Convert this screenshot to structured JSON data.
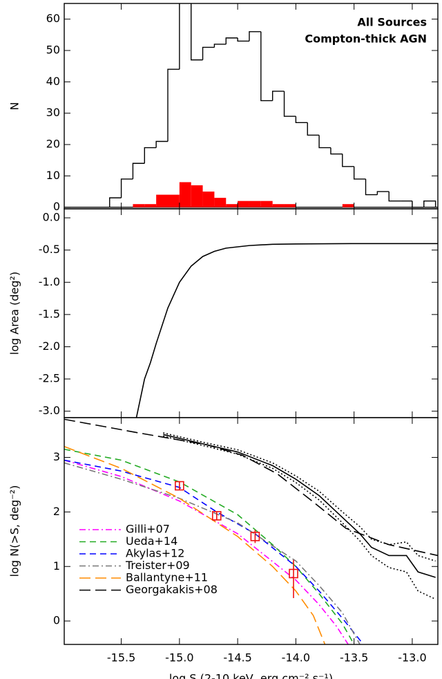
{
  "chart_data": [
    {
      "type": "histogram",
      "ylabel": "N",
      "xlim": [
        -15.99,
        -12.78
      ],
      "xticks": [
        -15.5,
        -15.0,
        -14.5,
        -14.0,
        -13.5,
        -13.0
      ],
      "ylim": [
        -0.5,
        65
      ],
      "yticks": [
        0,
        10,
        20,
        30,
        40,
        50,
        60
      ],
      "bins": [
        -15.6,
        -15.5,
        -15.4,
        -15.3,
        -15.2,
        -15.1,
        -15.0,
        -14.9,
        -14.8,
        -14.7,
        -14.6,
        -14.5,
        -14.4,
        -14.3,
        -14.2,
        -14.1,
        -14.0,
        -13.9,
        -13.8,
        -13.7,
        -13.6,
        -13.5,
        -13.4,
        -13.3,
        -13.2,
        -13.1,
        -13.0,
        -12.9,
        -12.8
      ],
      "legend": "upper right",
      "series": [
        {
          "name": "All Sources",
          "color": "#000000",
          "histtype": "step",
          "values": [
            3,
            9,
            14,
            19,
            21,
            44,
            70,
            47,
            51,
            52,
            54,
            53,
            56,
            34,
            37,
            29,
            27,
            23,
            19,
            17,
            13,
            9,
            4,
            5,
            2,
            2,
            0,
            2
          ]
        },
        {
          "name": "Compton-thick AGN",
          "color": "#ff0000",
          "histtype": "stepfilled",
          "values": [
            0,
            0,
            1,
            1,
            4,
            4,
            8,
            7,
            5,
            3,
            1,
            2,
            2,
            2,
            1,
            1,
            0,
            0,
            0,
            0,
            1,
            0,
            0,
            0,
            0,
            0,
            0,
            0
          ]
        }
      ]
    },
    {
      "type": "line",
      "ylabel": "log Area (deg²)",
      "xlim": [
        -15.99,
        -12.78
      ],
      "xticks": [
        -15.5,
        -15.0,
        -14.5,
        -14.0,
        -13.5,
        -13.0
      ],
      "ylim": [
        -3.1,
        0.14
      ],
      "yticks": [
        {
          "value": 0,
          "label": "0.0"
        },
        -0.5,
        {
          "value": -1,
          "label": "-1.0"
        },
        -1.5,
        {
          "value": -2,
          "label": "-2.0"
        },
        -2.5,
        {
          "value": -3,
          "label": "-3.0"
        }
      ],
      "color": "#000000",
      "x": [
        -15.37,
        -15.3,
        -15.25,
        -15.2,
        -15.1,
        -15.0,
        -14.9,
        -14.8,
        -14.7,
        -14.6,
        -14.4,
        -14.2,
        -14.0,
        -13.5,
        -12.78
      ],
      "values": [
        -3.1,
        -2.5,
        -2.25,
        -1.95,
        -1.4,
        -1.0,
        -0.75,
        -0.6,
        -0.52,
        -0.47,
        -0.43,
        -0.41,
        -0.405,
        -0.4,
        -0.4
      ]
    },
    {
      "type": "line",
      "xlabel": "log S (2-10 keV, erg cm⁻² s⁻¹)",
      "ylabel": "log N(>S, deg⁻²)",
      "xlim": [
        -15.99,
        -12.78
      ],
      "xticks": [
        -15.5,
        {
          "value": -15,
          "label": "-15.0"
        },
        -14.5,
        {
          "value": -14,
          "label": "-14.0"
        },
        -13.5,
        {
          "value": -13,
          "label": "-13.0"
        }
      ],
      "ylim": [
        -0.43,
        3.73
      ],
      "yticks": [
        0,
        1,
        2,
        3
      ],
      "legend": "lower left",
      "series": [
        {
          "name": "Gilli+07",
          "color": "#ff00ff",
          "dash": "dashdot",
          "x": [
            -15.99,
            -15.5,
            -15.0,
            -14.5,
            -14.0,
            -13.8,
            -13.65,
            -13.55
          ],
          "values": [
            2.95,
            2.65,
            2.2,
            1.6,
            0.75,
            0.3,
            -0.1,
            -0.43
          ]
        },
        {
          "name": "Ueda+14",
          "color": "#22aa22",
          "dash": "dash",
          "x": [
            -15.99,
            -15.5,
            -15.0,
            -14.5,
            -14.2,
            -14.0,
            -13.8,
            -13.6,
            -13.5
          ],
          "values": [
            3.15,
            2.95,
            2.55,
            1.95,
            1.4,
            1.0,
            0.5,
            -0.05,
            -0.43
          ]
        },
        {
          "name": "Akylas+12",
          "color": "#0000ff",
          "dash": "dash",
          "x": [
            -15.99,
            -15.5,
            -15.0,
            -14.68,
            -14.35,
            -14.0,
            -13.8,
            -13.6,
            -13.42
          ],
          "values": [
            2.95,
            2.75,
            2.45,
            2.0,
            1.6,
            1.0,
            0.55,
            0.05,
            -0.43
          ]
        },
        {
          "name": "Treister+09",
          "color": "#777777",
          "dash": "dashdot",
          "x": [
            -15.99,
            -15.5,
            -15.0,
            -14.5,
            -14.0,
            -13.8,
            -13.6,
            -13.45
          ],
          "values": [
            2.9,
            2.6,
            2.25,
            1.8,
            1.1,
            0.65,
            0.15,
            -0.43
          ]
        },
        {
          "name": "Ballantyne+11",
          "color": "#ff8c00",
          "dash": "longdash",
          "x": [
            -15.99,
            -15.5,
            -15.0,
            -14.5,
            -14.2,
            -14.0,
            -13.85,
            -13.75
          ],
          "values": [
            3.2,
            2.8,
            2.25,
            1.55,
            1.0,
            0.55,
            0.1,
            -0.43
          ]
        },
        {
          "name": "Georgakakis+08",
          "color": "#000000",
          "dash": "longdash",
          "x": [
            -15.99,
            -15.35,
            -14.76,
            -14.46,
            -14.16,
            -13.86,
            -13.57,
            -13.2,
            -12.78
          ],
          "values": [
            3.7,
            3.45,
            3.23,
            3.04,
            2.7,
            2.2,
            1.7,
            1.4,
            1.2
          ]
        },
        {
          "color": "#000000",
          "dash": "solid",
          "x": [
            -15.14,
            -14.8,
            -14.5,
            -14.2,
            -14.0,
            -13.8,
            -13.6,
            -13.45,
            -13.35,
            -13.2,
            -13.05,
            -12.95,
            -12.8
          ],
          "values": [
            3.42,
            3.25,
            3.1,
            2.85,
            2.6,
            2.3,
            1.9,
            1.6,
            1.35,
            1.2,
            1.2,
            0.9,
            0.8
          ]
        },
        {
          "color": "#000000",
          "dash": "dot",
          "x": [
            -15.14,
            -14.8,
            -14.5,
            -14.2,
            -14.0,
            -13.8,
            -13.6,
            -13.45,
            -13.35,
            -13.2,
            -13.05,
            -12.95,
            -12.8
          ],
          "values": [
            3.45,
            3.28,
            3.14,
            2.9,
            2.66,
            2.38,
            2.0,
            1.73,
            1.5,
            1.4,
            1.45,
            1.2,
            1.1
          ]
        },
        {
          "color": "#000000",
          "dash": "dot",
          "x": [
            -15.14,
            -14.8,
            -14.5,
            -14.2,
            -14.0,
            -13.8,
            -13.6,
            -13.45,
            -13.35,
            -13.2,
            -13.05,
            -12.95,
            -12.8
          ],
          "values": [
            3.39,
            3.22,
            3.06,
            2.8,
            2.54,
            2.22,
            1.8,
            1.47,
            1.2,
            0.98,
            0.9,
            0.55,
            0.4
          ]
        },
        {
          "color": "#ee1111",
          "marker": "square",
          "x": [
            -15.0,
            -14.68,
            -14.35,
            -14.02
          ],
          "values": [
            2.48,
            1.93,
            1.55,
            0.87
          ],
          "err_low": [
            0.07,
            0.08,
            0.12,
            0.45
          ],
          "err_high": [
            0.07,
            0.08,
            0.12,
            0.25
          ]
        }
      ]
    }
  ]
}
